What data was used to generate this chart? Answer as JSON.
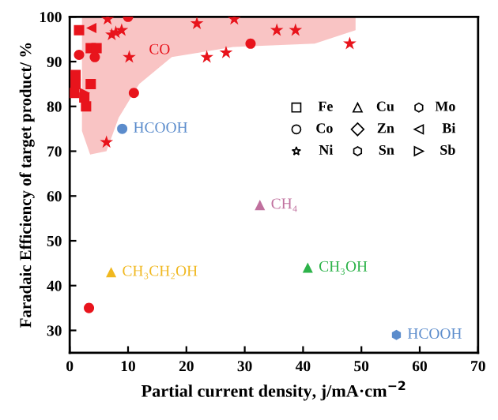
{
  "chart_data": {
    "type": "scatter",
    "xlabel": "Partial current density, j/mA·cm$^{−2}$",
    "ylabel": "Faradaic Efficiency of target product/ %",
    "xlim": [
      0,
      70
    ],
    "ylim": [
      25,
      100
    ],
    "xticks": [
      0,
      10,
      20,
      30,
      40,
      50,
      60,
      70
    ],
    "yticks": [
      30,
      40,
      50,
      60,
      70,
      80,
      90,
      100
    ],
    "grid": false,
    "series": [
      {
        "color": "#e8141c",
        "marker": "square",
        "x": [
          1.6,
          1.0,
          1.0,
          0.8,
          2.5,
          2.8,
          3.6,
          3.6,
          4.6
        ],
        "values": [
          97,
          87,
          85,
          83,
          82,
          80,
          85,
          93,
          93
        ]
      },
      {
        "color": "#e8141c",
        "marker": "circle",
        "x": [
          1.6,
          4.3,
          10,
          11,
          31,
          3.3
        ],
        "values": [
          91.5,
          91,
          100,
          83,
          94,
          35
        ]
      },
      {
        "color": "#e8141c",
        "marker": "star",
        "x": [
          6.5,
          7.2,
          7.9,
          8.9,
          10.2,
          6.3,
          21.8,
          23.5,
          26.8,
          28.2,
          35.5,
          38.7,
          48
        ],
        "values": [
          99.5,
          96,
          96.5,
          97,
          91,
          72,
          98.5,
          91,
          92,
          99.5,
          97,
          97,
          94
        ]
      },
      {
        "color": "#e8141c",
        "marker": "triangle_left",
        "x": [
          3.7
        ],
        "values": [
          97.5
        ]
      },
      {
        "color": "#e8141c",
        "marker": "triangle_right",
        "x": [
          2.6
        ],
        "values": [
          83
        ]
      },
      {
        "color": "#5b8ccc",
        "marker": "circle",
        "x": [
          9
        ],
        "values": [
          75
        ]
      },
      {
        "color": "#5b8ccc",
        "x": [
          56
        ],
        "values": [
          29
        ]
      },
      {
        "color": "#c0709e",
        "marker": "triangle",
        "x": [
          32.6
        ],
        "values": [
          58
        ]
      },
      {
        "color": "#2db34a",
        "marker": "triangle",
        "x": [
          40.8
        ],
        "values": [
          44
        ]
      },
      {
        "color": "#f0b820",
        "marker": "triangle",
        "x": [
          7.1
        ],
        "values": [
          43
        ]
      }
    ],
    "annotations": [
      "CO",
      {
        "text": "HCOOH",
        "x": 9,
        "y": 75
      },
      {
        "text": "HCOOH",
        "x": 56,
        "y": 29
      },
      {
        "text": "CH₄",
        "x": 32.6,
        "y": 58
      },
      {
        "text": "CH₃OH",
        "x": 40.8,
        "y": 44
      },
      {
        "text": "CH₃CH₂OH",
        "x": 7.1,
        "y": 43
      },
      "Fe",
      "Cu",
      "Mo",
      "Co",
      "Zn",
      "Bi",
      "Ni",
      "Sn",
      "Sb"
    ]
  }
}
